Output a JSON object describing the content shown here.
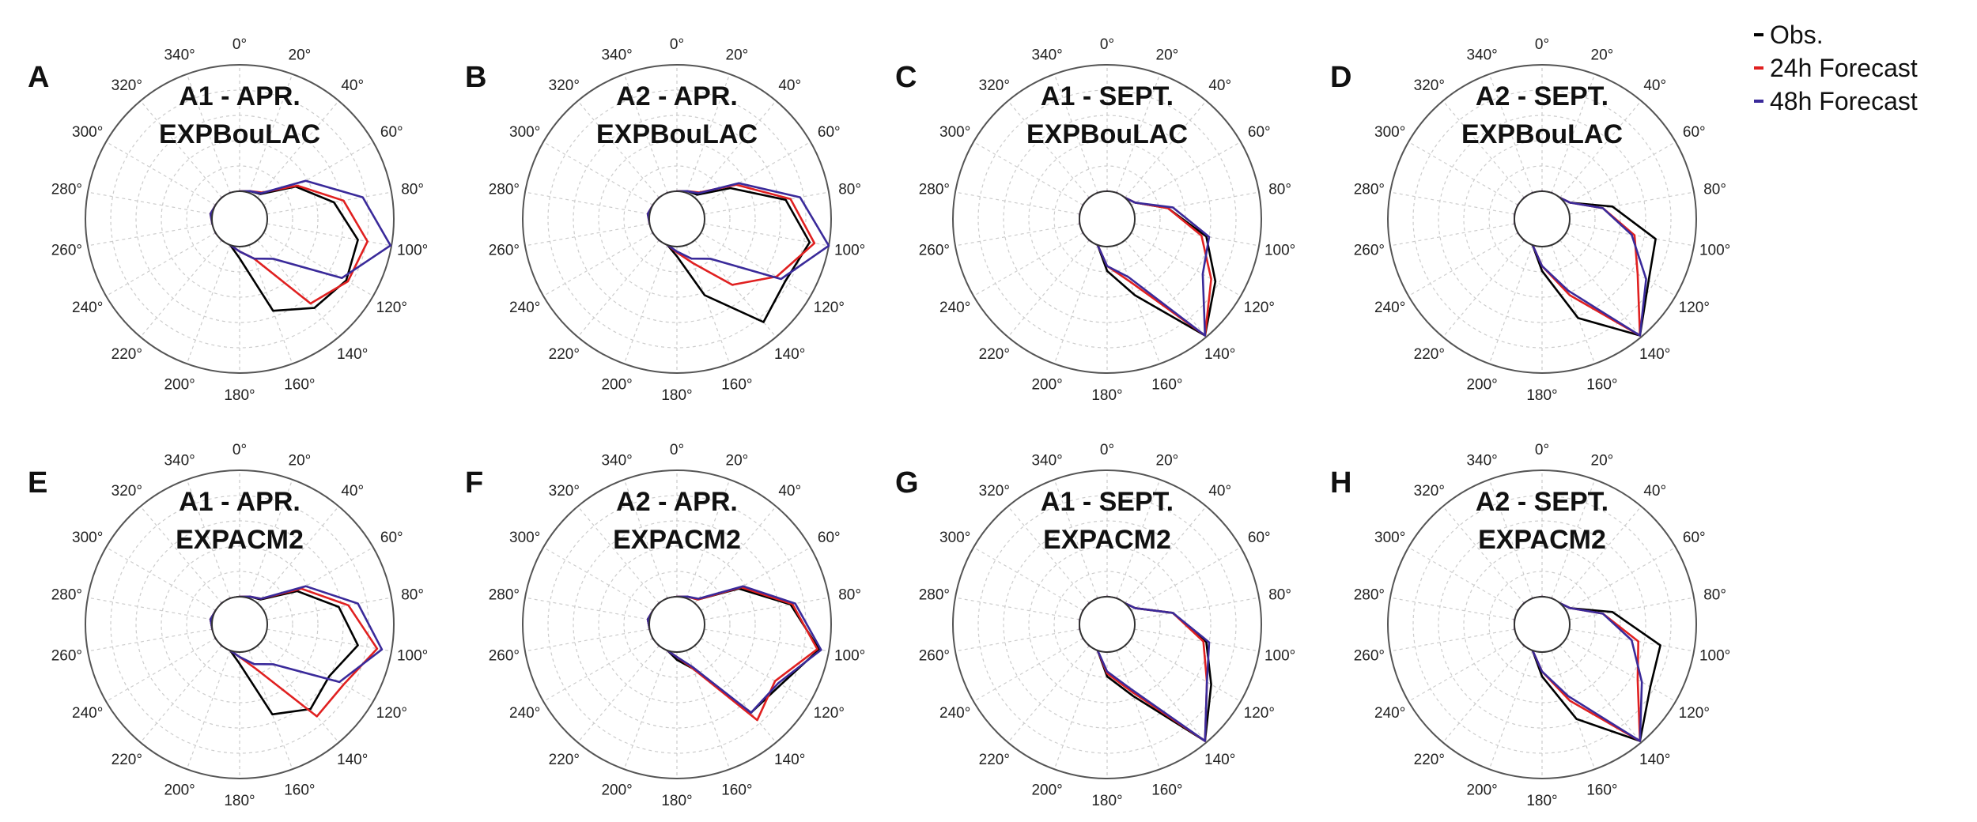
{
  "figure": {
    "angle_labels": [
      "0°",
      "20°",
      "40°",
      "60°",
      "80°",
      "100°",
      "120°",
      "140°",
      "160°",
      "180°",
      "200°",
      "220°",
      "240°",
      "260°",
      "280°",
      "300°",
      "320°",
      "340°"
    ],
    "legend": [
      {
        "label": "Obs.",
        "color": "#000000"
      },
      {
        "label": "24h Forecast",
        "color": "#e02020"
      },
      {
        "label": "48h Forecast",
        "color": "#3a2a9a"
      }
    ],
    "colors": {
      "grid": "#cccccc",
      "frame": "#555555",
      "inner_circle": "#333333"
    }
  },
  "chart_data": [
    {
      "type": "radar",
      "panel": "A",
      "title": [
        "A1 - APR.",
        "EXPBouLAC"
      ],
      "directions_deg": [
        0,
        20,
        40,
        60,
        80,
        100,
        120,
        140,
        160,
        180,
        200,
        220,
        240,
        260,
        280,
        300,
        320,
        340
      ],
      "series": [
        {
          "name": "Obs.",
          "values": [
            0,
            0.02,
            0.05,
            0.38,
            0.7,
            0.95,
            0.98,
            0.91,
            0.72,
            0.12,
            0,
            0,
            0,
            0,
            0.02,
            0,
            0,
            0
          ]
        },
        {
          "name": "24h Forecast",
          "values": [
            0,
            0.02,
            0.07,
            0.4,
            0.8,
            1.05,
            1.0,
            0.85,
            0.15,
            0.05,
            0,
            0,
            0,
            0,
            0.02,
            0,
            0,
            0
          ]
        },
        {
          "name": "48h Forecast",
          "values": [
            0,
            0.02,
            0.06,
            0.5,
            1.0,
            1.29,
            0.93,
            0.25,
            0.15,
            0.05,
            0,
            0,
            0,
            0,
            0.02,
            0,
            0,
            0
          ]
        }
      ]
    },
    {
      "type": "radar",
      "panel": "B",
      "title": [
        "A2 - APR.",
        "EXPBouLAC"
      ],
      "directions_deg": [
        0,
        20,
        40,
        60,
        80,
        100,
        120,
        140,
        160,
        180,
        200,
        220,
        240,
        260,
        280,
        300,
        320,
        340
      ],
      "series": [
        {
          "name": "Obs.",
          "values": [
            0,
            0.02,
            0.04,
            0.35,
            0.85,
            1.1,
            1.0,
            1.1,
            0.55,
            0.1,
            0,
            0,
            0,
            0,
            0.02,
            0,
            0,
            0
          ]
        },
        {
          "name": "24h Forecast",
          "values": [
            0,
            0.02,
            0.07,
            0.42,
            0.9,
            1.15,
            0.9,
            0.6,
            0.2,
            0.06,
            0,
            0,
            0,
            0,
            0.02,
            0,
            0,
            0
          ]
        },
        {
          "name": "48h Forecast",
          "values": [
            0,
            0.02,
            0.06,
            0.45,
            1.0,
            1.3,
            0.95,
            0.25,
            0.15,
            0.05,
            0,
            0,
            0,
            0,
            0.02,
            0,
            0,
            0
          ]
        }
      ]
    },
    {
      "type": "radar",
      "panel": "C",
      "title": [
        "A1 - SEPT.",
        "EXPBouLAC"
      ],
      "directions_deg": [
        0,
        20,
        40,
        60,
        80,
        100,
        120,
        140,
        160,
        180,
        200,
        220,
        240,
        260,
        280,
        300,
        320,
        340
      ],
      "series": [
        {
          "name": "Obs.",
          "values": [
            0,
            0,
            0,
            0.05,
            0.35,
            0.75,
            1.0,
            1.28,
            0.55,
            0.25,
            0,
            0,
            0,
            0,
            0,
            0,
            0,
            0
          ]
        },
        {
          "name": "24h Forecast",
          "values": [
            0,
            0,
            0,
            0.05,
            0.35,
            0.7,
            0.95,
            1.28,
            0.4,
            0.2,
            0,
            0,
            0,
            0,
            0,
            0,
            0,
            0
          ]
        },
        {
          "name": "48h Forecast",
          "values": [
            0,
            0,
            0,
            0.05,
            0.4,
            0.78,
            0.85,
            1.28,
            0.35,
            0.2,
            0,
            0,
            0,
            0,
            0,
            0,
            0,
            0
          ]
        }
      ]
    },
    {
      "type": "radar",
      "panel": "D",
      "title": [
        "A2 - SEPT.",
        "EXPBouLAC"
      ],
      "directions_deg": [
        0,
        20,
        40,
        60,
        80,
        100,
        120,
        140,
        160,
        180,
        200,
        220,
        240,
        260,
        280,
        300,
        320,
        340
      ],
      "series": [
        {
          "name": "Obs.",
          "values": [
            0,
            0,
            0,
            0.05,
            0.45,
            0.9,
            0.98,
            1.28,
            0.8,
            0.25,
            0,
            0,
            0,
            0,
            0,
            0,
            0,
            0
          ]
        },
        {
          "name": "24h Forecast",
          "values": [
            0,
            0,
            0,
            0.05,
            0.35,
            0.68,
            0.85,
            1.28,
            0.55,
            0.2,
            0,
            0,
            0,
            0,
            0,
            0,
            0,
            0
          ]
        },
        {
          "name": "48h Forecast",
          "values": [
            0,
            0,
            0,
            0.05,
            0.35,
            0.65,
            0.95,
            1.28,
            0.5,
            0.2,
            0,
            0,
            0,
            0,
            0,
            0,
            0,
            0
          ]
        }
      ]
    },
    {
      "type": "radar",
      "panel": "E",
      "title": [
        "A1 - APR.",
        "EXPACM2"
      ],
      "directions_deg": [
        0,
        20,
        40,
        60,
        80,
        100,
        120,
        140,
        160,
        180,
        200,
        220,
        240,
        260,
        280,
        300,
        320,
        340
      ],
      "series": [
        {
          "name": "Obs.",
          "values": [
            0,
            0.02,
            0.05,
            0.4,
            0.75,
            0.95,
            0.78,
            0.85,
            0.7,
            0.12,
            0,
            0,
            0,
            0,
            0.02,
            0,
            0,
            0
          ]
        },
        {
          "name": "24h Forecast",
          "values": [
            0,
            0.02,
            0.06,
            0.45,
            0.85,
            1.15,
            0.95,
            0.95,
            0.2,
            0.05,
            0,
            0,
            0,
            0,
            0.02,
            0,
            0,
            0
          ]
        },
        {
          "name": "48h Forecast",
          "values": [
            0,
            0.02,
            0.06,
            0.5,
            0.95,
            1.2,
            0.9,
            0.25,
            0.15,
            0.05,
            0,
            0,
            0,
            0,
            0.02,
            0,
            0,
            0
          ]
        }
      ]
    },
    {
      "type": "radar",
      "panel": "F",
      "title": [
        "A2 - APR.",
        "EXPACM2"
      ],
      "directions_deg": [
        0,
        20,
        40,
        60,
        80,
        100,
        120,
        140,
        160,
        180,
        200,
        220,
        240,
        260,
        280,
        300,
        320,
        340
      ],
      "series": [
        {
          "name": "Obs.",
          "values": [
            0,
            0.02,
            0.05,
            0.45,
            0.9,
            1.2,
            0.95,
            0.9,
            0.2,
            0.08,
            0,
            0,
            0,
            0,
            0.02,
            0,
            0,
            0
          ]
        },
        {
          "name": "24h Forecast",
          "values": [
            0,
            0.02,
            0.05,
            0.48,
            0.92,
            1.18,
            0.88,
            1.0,
            0.2,
            0.05,
            0,
            0,
            0,
            0,
            0.02,
            0,
            0,
            0
          ]
        },
        {
          "name": "48h Forecast",
          "values": [
            0,
            0.02,
            0.06,
            0.5,
            0.95,
            1.22,
            0.92,
            0.9,
            0.18,
            0.05,
            0,
            0,
            0,
            0,
            0.02,
            0,
            0,
            0
          ]
        }
      ]
    },
    {
      "type": "radar",
      "panel": "G",
      "title": [
        "A1 - SEPT.",
        "EXPACM2"
      ],
      "directions_deg": [
        0,
        20,
        40,
        60,
        80,
        100,
        120,
        140,
        160,
        180,
        200,
        220,
        240,
        260,
        280,
        300,
        320,
        340
      ],
      "series": [
        {
          "name": "Obs.",
          "values": [
            0,
            0,
            0,
            0.05,
            0.4,
            0.75,
            0.95,
            1.28,
            0.5,
            0.25,
            0,
            0,
            0,
            0,
            0,
            0,
            0,
            0
          ]
        },
        {
          "name": "24h Forecast",
          "values": [
            0,
            0,
            0,
            0.05,
            0.4,
            0.72,
            0.9,
            1.28,
            0.45,
            0.22,
            0,
            0,
            0,
            0,
            0,
            0,
            0,
            0
          ]
        },
        {
          "name": "48h Forecast",
          "values": [
            0,
            0,
            0,
            0.05,
            0.4,
            0.78,
            0.9,
            1.28,
            0.42,
            0.2,
            0,
            0,
            0,
            0,
            0,
            0,
            0,
            0
          ]
        }
      ]
    },
    {
      "type": "radar",
      "panel": "H",
      "title": [
        "A2 - SEPT.",
        "EXPACM2"
      ],
      "directions_deg": [
        0,
        20,
        40,
        60,
        80,
        100,
        120,
        140,
        160,
        180,
        200,
        220,
        240,
        260,
        280,
        300,
        320,
        340
      ],
      "series": [
        {
          "name": "Obs.",
          "values": [
            0,
            0,
            0,
            0.05,
            0.45,
            0.95,
            1.0,
            1.28,
            0.75,
            0.25,
            0,
            0,
            0,
            0,
            0,
            0,
            0,
            0
          ]
        },
        {
          "name": "24h Forecast",
          "values": [
            0,
            0,
            0,
            0.05,
            0.35,
            0.72,
            0.85,
            1.28,
            0.55,
            0.2,
            0,
            0,
            0,
            0,
            0,
            0,
            0,
            0
          ]
        },
        {
          "name": "48h Forecast",
          "values": [
            0,
            0,
            0,
            0.05,
            0.35,
            0.65,
            0.9,
            1.28,
            0.5,
            0.2,
            0,
            0,
            0,
            0,
            0,
            0,
            0,
            0
          ]
        }
      ]
    }
  ]
}
